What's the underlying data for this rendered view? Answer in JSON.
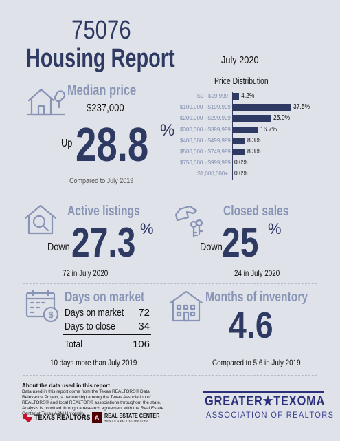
{
  "header": {
    "zip": "75076",
    "title": "Housing Report",
    "month": "July 2020",
    "distribution_title": "Price Distribution"
  },
  "median": {
    "title": "Median price",
    "value": "$237,000",
    "direction": "Up",
    "change": "28.8",
    "unit": "%",
    "compare": "Compared to July 2019"
  },
  "chart_data": {
    "type": "bar",
    "title": "Price Distribution",
    "categories": [
      "$0 - $99,999",
      "$100,000 - $199,999",
      "$200,000 - $299,999",
      "$300,000 - $399,999",
      "$400,000 - $499,999",
      "$500,000 - $749,999",
      "$750,000 - $999,999",
      "$1,000,000+"
    ],
    "values": [
      4.2,
      37.5,
      25.0,
      16.7,
      8.3,
      8.3,
      0.0,
      0.0
    ],
    "value_labels": [
      "4.2%",
      "37.5%",
      "25.0%",
      "16.7%",
      "8.3%",
      "8.3%",
      "0.0%",
      "0.0%"
    ],
    "orientation": "horizontal",
    "xlim": [
      0,
      37.5
    ],
    "grid": false,
    "bar_color": "#2f3a63"
  },
  "active": {
    "title": "Active listings",
    "direction": "Down",
    "change": "27.3",
    "unit": "%",
    "note": "72 in July 2020"
  },
  "closed": {
    "title": "Closed sales",
    "direction": "Down",
    "change": "25",
    "unit": "%",
    "note": "24 in July 2020"
  },
  "dom": {
    "title": "Days on market",
    "rows": [
      {
        "label": "Days on market",
        "value": "72"
      },
      {
        "label": "Days to close",
        "value": "34"
      }
    ],
    "total_label": "Total",
    "total_value": "106",
    "note": "10 days more than July 2019"
  },
  "inventory": {
    "title": "Months of inventory",
    "value": "4.6",
    "note": "Compared to 5.6 in July 2019"
  },
  "footer": {
    "about_title": "About the data used in this report",
    "about_text": "Data used in this report come from the Texas REALTORS® Data Relevance Project, a partnership among the Texas Association of REALTORS® and local REALTOR® associations throughout the state. Analysis is provided through a research agreement with the Real Estate Center at Texas A&M University.",
    "texas_realtors": "TEXAS REALTORS",
    "rec_line1": "REAL ESTATE CENTER",
    "rec_line2": "TEXAS A&M UNIVERSITY",
    "gt_line1": "GREATER★TEXOMA",
    "gt_line2": "ASSOCIATION OF REALTORS"
  },
  "colors": {
    "navy": "#2f3a63",
    "steel": "#8794b6",
    "background": "#dfe2e8",
    "brand_red": "#c8102e",
    "brand_maroon": "#500000"
  }
}
